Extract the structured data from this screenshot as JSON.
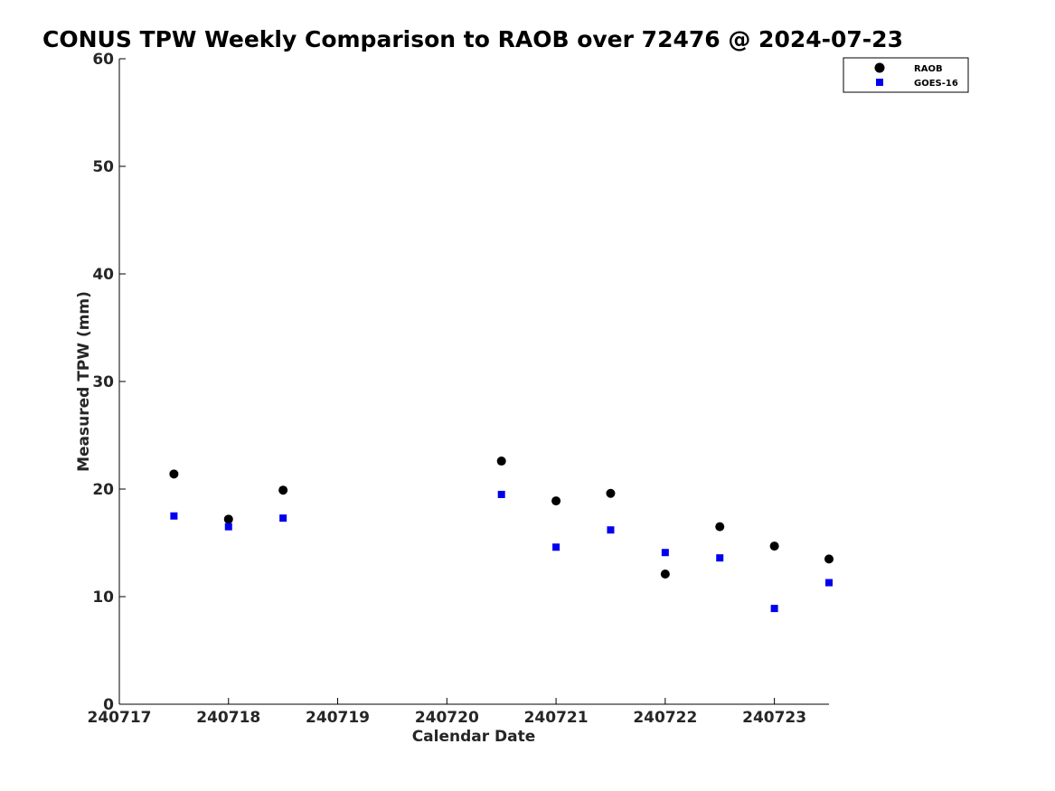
{
  "chart_data": {
    "type": "scatter",
    "title": "CONUS TPW Weekly Comparison to RAOB over 72476 @ 2024-07-23",
    "xlabel": "Calendar Date",
    "ylabel": "Measured TPW (mm)",
    "xlim": [
      240717,
      240723.5
    ],
    "ylim": [
      0,
      60
    ],
    "xticks": [
      240717,
      240718,
      240719,
      240720,
      240721,
      240722,
      240723
    ],
    "xtick_labels": [
      "240717",
      "240718",
      "240719",
      "240720",
      "240721",
      "240722",
      "240723"
    ],
    "yticks": [
      0,
      10,
      20,
      30,
      40,
      50,
      60
    ],
    "ytick_labels": [
      "0",
      "10",
      "20",
      "30",
      "40",
      "50",
      "60"
    ],
    "grid": false,
    "legend_position": "top-right",
    "series": [
      {
        "name": "RAOB",
        "marker": "circle",
        "color": "#000000",
        "x": [
          240717.5,
          240718.0,
          240718.5,
          240720.5,
          240721.0,
          240721.5,
          240722.0,
          240722.5,
          240723.0,
          240723.5
        ],
        "y": [
          21.4,
          17.2,
          19.9,
          22.6,
          18.9,
          19.6,
          12.1,
          16.5,
          14.7,
          13.5
        ]
      },
      {
        "name": "GOES-16",
        "marker": "square",
        "color": "#0000ee",
        "x": [
          240717.5,
          240718.0,
          240718.5,
          240720.5,
          240721.0,
          240721.5,
          240722.0,
          240722.5,
          240723.0,
          240723.5
        ],
        "y": [
          17.5,
          16.5,
          17.3,
          19.5,
          14.6,
          16.2,
          14.1,
          13.6,
          8.9,
          11.3
        ]
      }
    ]
  }
}
